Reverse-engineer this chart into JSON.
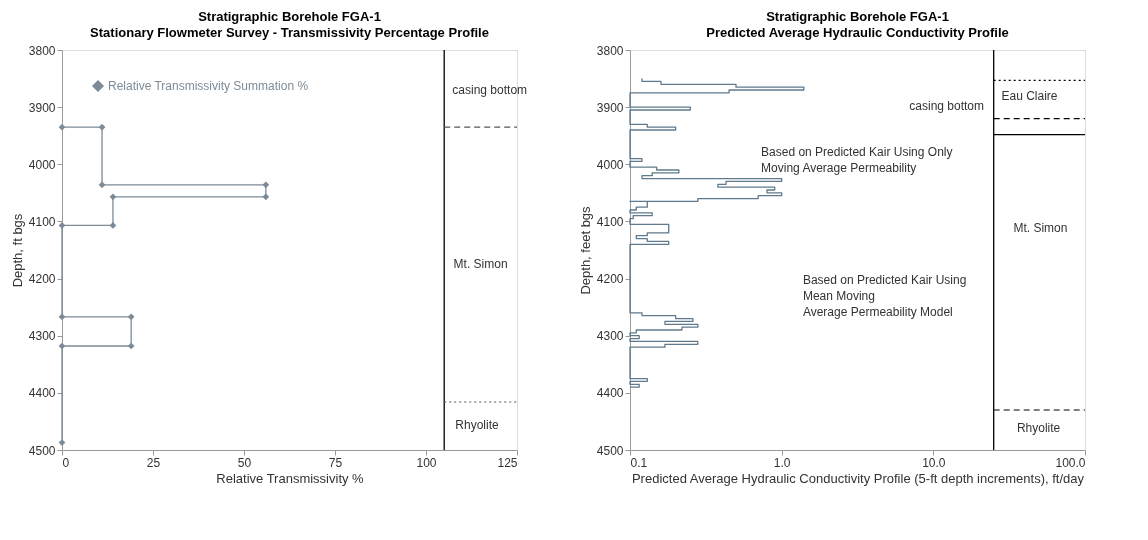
{
  "chart_data": [
    {
      "type": "line",
      "title": "Stratigraphic Borehole FGA-1",
      "subtitle": "Stationary Flowmeter Survey - Transmissivity Percentage Profile",
      "xlabel": "Relative Transmissivity %",
      "ylabel": "Depth,  ft bgs",
      "xlim": [
        0,
        125
      ],
      "xticks": [
        0,
        25,
        50,
        75,
        100,
        125
      ],
      "ylim": [
        4500,
        3800
      ],
      "yticks": [
        3800,
        3900,
        4000,
        4100,
        4200,
        4300,
        4400,
        4500
      ],
      "grid": false,
      "legend": "top left",
      "marker": "diamond",
      "line_style": "solid",
      "series": [
        {
          "name": "Relative Transmissivity Summation %",
          "color": "#7d8b99",
          "x": [
            0,
            11,
            11,
            56,
            56,
            14,
            14,
            0,
            0,
            19,
            19,
            0,
            0
          ],
          "values": [
            3935,
            3935,
            4036,
            4036,
            4057,
            4057,
            4107,
            4107,
            4267,
            4267,
            4318,
            4318,
            4487
          ]
        }
      ],
      "ref_lines": [
        {
          "axis": "x",
          "value": 105,
          "color": "#000000",
          "line_style": "solid"
        },
        {
          "axis": "y",
          "value": 3935,
          "color": "#555555",
          "line_style": "dashed"
        },
        {
          "axis": "y",
          "value": 4416,
          "color": "#555555",
          "line_style": "dotted"
        }
      ],
      "annotations": [
        "casing bottom",
        "Mt. Simon",
        "Rhyolite"
      ]
    },
    {
      "type": "line",
      "title": "Stratigraphic Borehole FGA-1",
      "subtitle": "Predicted Average Hydraulic Conductivity Profile",
      "xlabel": "Predicted Average Hydraulic Conductivity Profile (5-ft depth increments),  ft/day",
      "ylabel": "Depth, feet bgs",
      "log": "x",
      "xlim": [
        0.1,
        100
      ],
      "xticks": [
        {
          "value": 0.1,
          "label": "0.1"
        },
        {
          "value": 1,
          "label": "1.0"
        },
        {
          "value": 10,
          "label": "10.0"
        },
        {
          "value": 100,
          "label": "100.0"
        }
      ],
      "ylim": [
        4500,
        3800
      ],
      "yticks": [
        3800,
        3900,
        4000,
        4100,
        4200,
        4300,
        4400,
        4500
      ],
      "grid": false,
      "legend": false,
      "marker": "none",
      "line_style": "solid",
      "series": [
        {
          "color": "#5f7a8c",
          "x": [
            0.12,
            0.12,
            0.16,
            0.16,
            0.5,
            0.5,
            1.4,
            1.4,
            0.45,
            0.45,
            0.1,
            0.1,
            0.25,
            0.25,
            0.1,
            0.1,
            0.13,
            0.13,
            0.2,
            0.2,
            0.1,
            0.1,
            0.12,
            0.12,
            0.1,
            0.1,
            0.15,
            0.15,
            0.21,
            0.21,
            0.14,
            0.14,
            0.12,
            0.12,
            1.0,
            1.0,
            0.43,
            0.43,
            0.38,
            0.38,
            0.9,
            0.9,
            0.8,
            0.8,
            1.0,
            1.0,
            0.7,
            0.7,
            0.28,
            0.28,
            0.1,
            0.13,
            0.13,
            0.11,
            0.11,
            0.1,
            0.1,
            0.14,
            0.14,
            0.105,
            0.105,
            0.1,
            0.1,
            0.18,
            0.18,
            0.13,
            0.13,
            0.11,
            0.11,
            0.13,
            0.13,
            0.18,
            0.18,
            0.1,
            0.1,
            0.12,
            0.12,
            0.2,
            0.2,
            0.26,
            0.26,
            0.17,
            0.17,
            0.28,
            0.28,
            0.22,
            0.22,
            0.11,
            0.11,
            0.1,
            0.1,
            0.115,
            0.115,
            0.1,
            0.1,
            0.28,
            0.28,
            0.17,
            0.17,
            0.1,
            0.1,
            0.13,
            0.13,
            0.1,
            0.1,
            0.115,
            0.115,
            0.1
          ],
          "values": [
            3850,
            3855,
            3855,
            3860,
            3860,
            3865,
            3865,
            3870,
            3870,
            3875,
            3875,
            3900,
            3900,
            3905,
            3905,
            3930,
            3930,
            3935,
            3935,
            3940,
            3940,
            3990,
            3990,
            3995,
            3995,
            4005,
            4005,
            4010,
            4010,
            4015,
            4015,
            4020,
            4020,
            4025,
            4025,
            4030,
            4030,
            4035,
            4035,
            4040,
            4040,
            4045,
            4045,
            4050,
            4050,
            4055,
            4055,
            4060,
            4060,
            4065,
            4065,
            4065,
            4075,
            4075,
            4080,
            4080,
            4085,
            4085,
            4090,
            4090,
            4095,
            4095,
            4105,
            4105,
            4120,
            4120,
            4125,
            4125,
            4130,
            4130,
            4135,
            4135,
            4140,
            4140,
            4260,
            4260,
            4265,
            4265,
            4270,
            4270,
            4275,
            4275,
            4280,
            4280,
            4285,
            4285,
            4290,
            4290,
            4295,
            4295,
            4300,
            4300,
            4305,
            4305,
            4310,
            4310,
            4315,
            4315,
            4320,
            4320,
            4375,
            4375,
            4380,
            4380,
            4385,
            4385,
            4390,
            4390
          ]
        }
      ],
      "ref_lines": [
        {
          "axis": "x",
          "value": 25,
          "color": "#000000",
          "line_style": "solid"
        },
        {
          "axis": "y",
          "value": 3853,
          "color": "#000000",
          "line_style": "dotted"
        },
        {
          "axis": "y",
          "value": 3920,
          "color": "#000000",
          "line_style": "dashed"
        },
        {
          "axis": "y",
          "value": 3948,
          "color": "#000000",
          "line_style": "solid"
        },
        {
          "axis": "y",
          "value": 4430,
          "color": "#000000",
          "line_style": "dashed"
        }
      ],
      "annotations": [
        "Based on Predicted Kair Using Only\nMoving Average Permeability",
        "Based on Predicted Kair Using\nMean Moving\nAverage Permeability Model",
        "casing bottom",
        "Eau Claire",
        "Mt. Simon",
        "Rhyolite"
      ]
    }
  ]
}
